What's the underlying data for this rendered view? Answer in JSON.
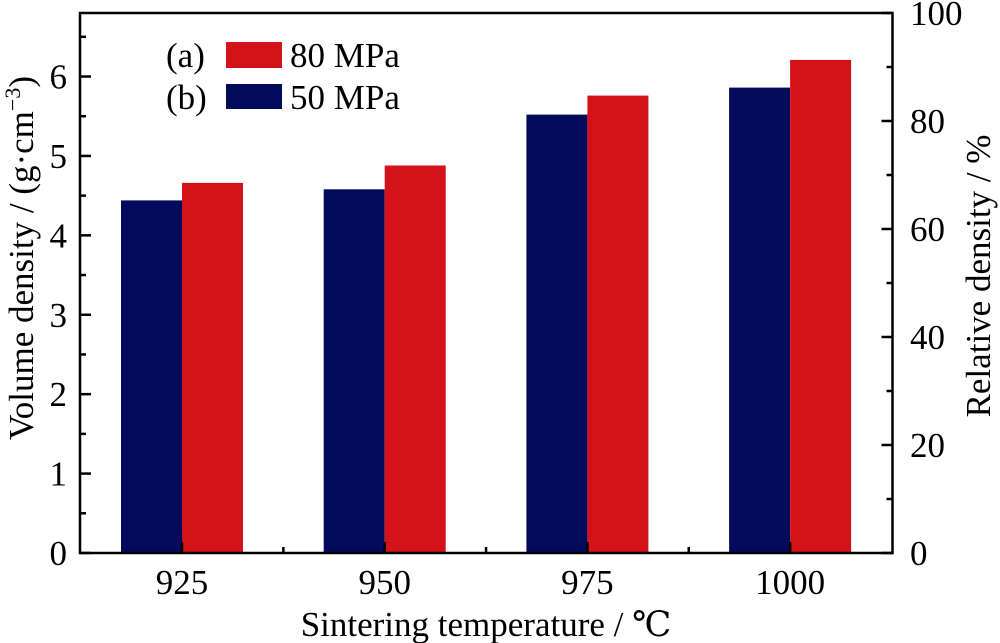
{
  "chart_data": {
    "type": "bar",
    "title": "",
    "categories": [
      "925",
      "950",
      "975",
      "1000"
    ],
    "series": [
      {
        "name": "50 MPa",
        "tag": "(b)",
        "color": "#020a5c",
        "values": [
          4.44,
          4.58,
          5.52,
          5.86
        ]
      },
      {
        "name": "80 MPa",
        "tag": "(a)",
        "color": "#d4121a",
        "values": [
          4.66,
          4.88,
          5.76,
          6.21
        ]
      }
    ],
    "xlabel": "Sintering temperature / ℃",
    "ylabel": "Volume density / (g·cm",
    "ylabel_sup": "−3",
    "ylabel_close": ")",
    "ylim": [
      0,
      6.8
    ],
    "yticks": [
      "0",
      "1",
      "2",
      "3",
      "4",
      "5",
      "6"
    ],
    "y2label": "Relative density / %",
    "y2lim": [
      0,
      100
    ],
    "y2ticks": [
      "0",
      "20",
      "40",
      "60",
      "80",
      "100"
    ],
    "grid": false,
    "legend": {
      "placement": "top-left",
      "entries": [
        {
          "tag": "(a)",
          "label": "80 MPa",
          "color": "#d4121a"
        },
        {
          "tag": "(b)",
          "label": "50 MPa",
          "color": "#020a5c"
        }
      ]
    }
  }
}
